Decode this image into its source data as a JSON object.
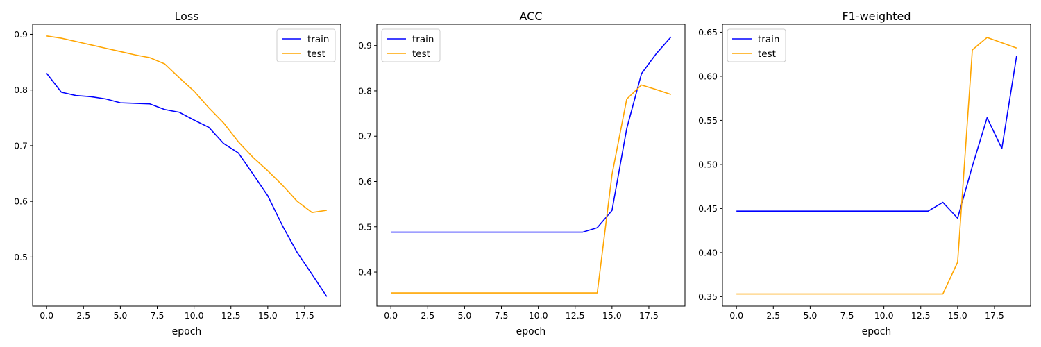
{
  "chart_data": [
    {
      "type": "line",
      "title": "Loss",
      "xlabel": "epoch",
      "ylabel": "",
      "xlim": [
        -0.95,
        19.95
      ],
      "ylim": [
        0.412,
        0.918
      ],
      "xticks": [
        0.0,
        2.5,
        5.0,
        7.5,
        10.0,
        12.5,
        15.0,
        17.5
      ],
      "xtick_labels": [
        "0.0",
        "2.5",
        "5.0",
        "7.5",
        "10.0",
        "12.5",
        "15.0",
        "17.5"
      ],
      "yticks": [
        0.5,
        0.6,
        0.7,
        0.8,
        0.9
      ],
      "ytick_labels": [
        "0.5",
        "0.6",
        "0.7",
        "0.8",
        "0.9"
      ],
      "legend_position": "upper-right",
      "grid": false,
      "x": [
        0,
        1,
        2,
        3,
        4,
        5,
        6,
        7,
        8,
        9,
        10,
        11,
        12,
        13,
        14,
        15,
        16,
        17,
        18,
        19
      ],
      "series": [
        {
          "name": "train",
          "color": "#0000ff",
          "values": [
            0.83,
            0.796,
            0.79,
            0.788,
            0.784,
            0.777,
            0.776,
            0.775,
            0.765,
            0.76,
            0.746,
            0.733,
            0.704,
            0.687,
            0.649,
            0.61,
            0.556,
            0.508,
            0.469,
            0.429
          ]
        },
        {
          "name": "test",
          "color": "#ffa500",
          "values": [
            0.897,
            0.893,
            0.887,
            0.881,
            0.875,
            0.869,
            0.863,
            0.858,
            0.847,
            0.822,
            0.798,
            0.768,
            0.741,
            0.707,
            0.679,
            0.655,
            0.629,
            0.6,
            0.58,
            0.584
          ]
        }
      ]
    },
    {
      "type": "line",
      "title": "ACC",
      "xlabel": "epoch",
      "ylabel": "",
      "xlim": [
        -0.95,
        19.95
      ],
      "ylim": [
        0.325,
        0.947
      ],
      "xticks": [
        0.0,
        2.5,
        5.0,
        7.5,
        10.0,
        12.5,
        15.0,
        17.5
      ],
      "xtick_labels": [
        "0.0",
        "2.5",
        "5.0",
        "7.5",
        "10.0",
        "12.5",
        "15.0",
        "17.5"
      ],
      "yticks": [
        0.4,
        0.5,
        0.6,
        0.7,
        0.8,
        0.9
      ],
      "ytick_labels": [
        "0.4",
        "0.5",
        "0.6",
        "0.7",
        "0.8",
        "0.9"
      ],
      "legend_position": "upper-left",
      "grid": false,
      "x": [
        0,
        1,
        2,
        3,
        4,
        5,
        6,
        7,
        8,
        9,
        10,
        11,
        12,
        13,
        14,
        15,
        16,
        17,
        18,
        19
      ],
      "series": [
        {
          "name": "train",
          "color": "#0000ff",
          "values": [
            0.488,
            0.488,
            0.488,
            0.488,
            0.488,
            0.488,
            0.488,
            0.488,
            0.488,
            0.488,
            0.488,
            0.488,
            0.488,
            0.488,
            0.498,
            0.536,
            0.717,
            0.838,
            0.882,
            0.919
          ]
        },
        {
          "name": "test",
          "color": "#ffa500",
          "values": [
            0.354,
            0.354,
            0.354,
            0.354,
            0.354,
            0.354,
            0.354,
            0.354,
            0.354,
            0.354,
            0.354,
            0.354,
            0.354,
            0.354,
            0.354,
            0.615,
            0.782,
            0.813,
            0.803,
            0.792
          ]
        }
      ]
    },
    {
      "type": "line",
      "title": "F1-weighted",
      "xlabel": "epoch",
      "ylabel": "",
      "xlim": [
        -0.95,
        19.95
      ],
      "ylim": [
        0.3393,
        0.659
      ],
      "xticks": [
        0.0,
        2.5,
        5.0,
        7.5,
        10.0,
        12.5,
        15.0,
        17.5
      ],
      "xtick_labels": [
        "0.0",
        "2.5",
        "5.0",
        "7.5",
        "10.0",
        "12.5",
        "15.0",
        "17.5"
      ],
      "yticks": [
        0.35,
        0.4,
        0.45,
        0.5,
        0.55,
        0.6,
        0.65
      ],
      "ytick_labels": [
        "0.35",
        "0.40",
        "0.45",
        "0.50",
        "0.55",
        "0.60",
        "0.65"
      ],
      "legend_position": "upper-left",
      "grid": false,
      "x": [
        0,
        1,
        2,
        3,
        4,
        5,
        6,
        7,
        8,
        9,
        10,
        11,
        12,
        13,
        14,
        15,
        16,
        17,
        18,
        19
      ],
      "series": [
        {
          "name": "train",
          "color": "#0000ff",
          "values": [
            0.447,
            0.447,
            0.447,
            0.447,
            0.447,
            0.447,
            0.447,
            0.447,
            0.447,
            0.447,
            0.447,
            0.447,
            0.447,
            0.447,
            0.457,
            0.439,
            0.498,
            0.553,
            0.518,
            0.623
          ]
        },
        {
          "name": "test",
          "color": "#ffa500",
          "values": [
            0.353,
            0.353,
            0.353,
            0.353,
            0.353,
            0.353,
            0.353,
            0.353,
            0.353,
            0.353,
            0.353,
            0.353,
            0.353,
            0.353,
            0.353,
            0.389,
            0.63,
            0.644,
            0.638,
            0.632
          ]
        }
      ]
    }
  ]
}
